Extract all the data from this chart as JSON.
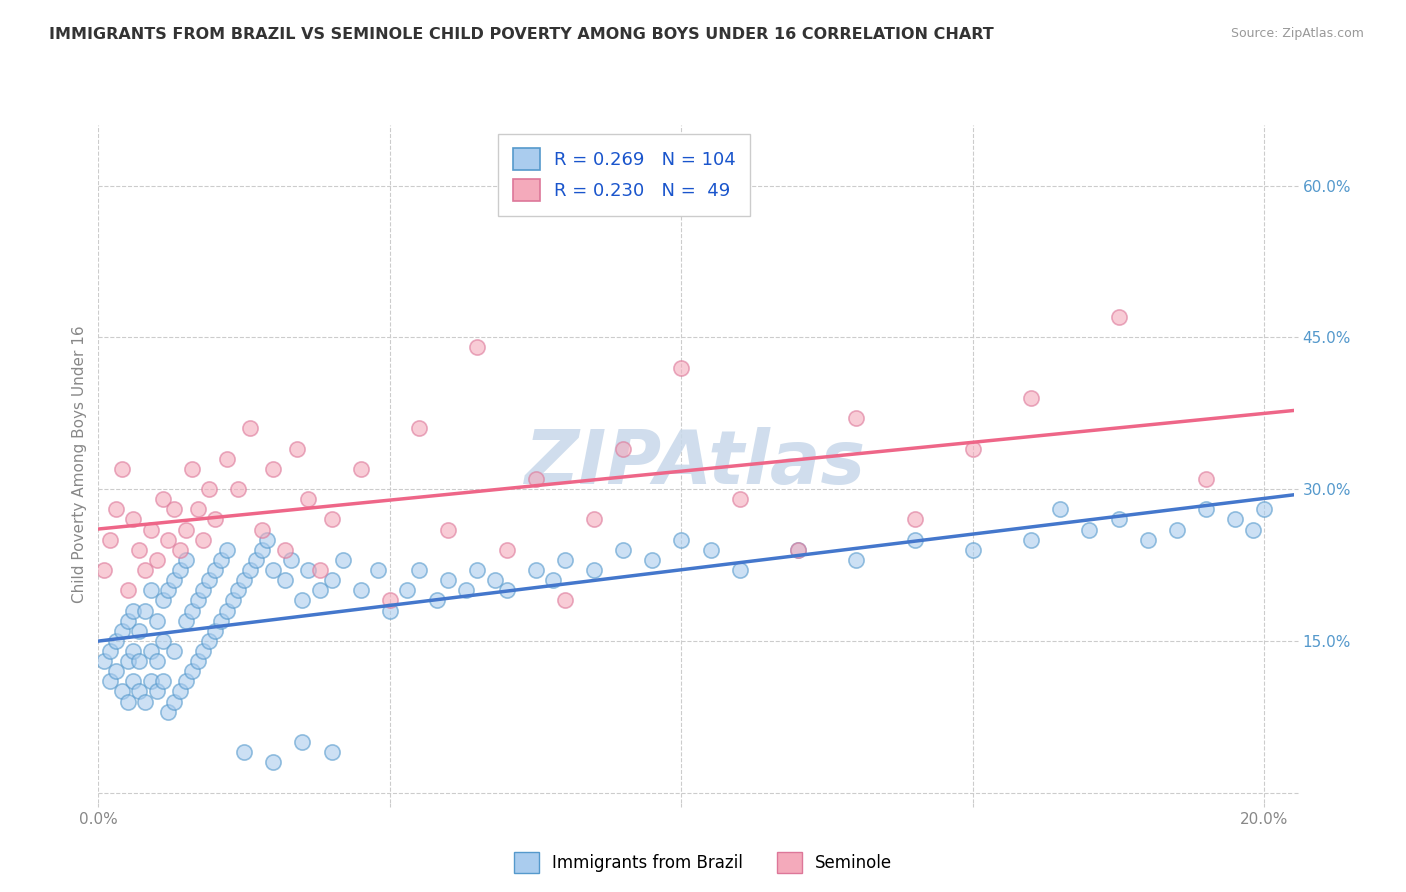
{
  "title": "IMMIGRANTS FROM BRAZIL VS SEMINOLE CHILD POVERTY AMONG BOYS UNDER 16 CORRELATION CHART",
  "source": "Source: ZipAtlas.com",
  "ylabel": "Child Poverty Among Boys Under 16",
  "xlim": [
    0.0,
    0.205
  ],
  "ylim": [
    -0.01,
    0.66
  ],
  "xticks": [
    0.0,
    0.05,
    0.1,
    0.15,
    0.2
  ],
  "yticks": [
    0.0,
    0.15,
    0.3,
    0.45,
    0.6
  ],
  "brazil_R": 0.269,
  "brazil_N": 104,
  "seminole_R": 0.23,
  "seminole_N": 49,
  "brazil_dot_color": "#aaccee",
  "brazil_edge_color": "#5599cc",
  "seminole_dot_color": "#f4aabb",
  "seminole_edge_color": "#dd7799",
  "brazil_line_color": "#4477cc",
  "seminole_line_color": "#ee6688",
  "legend_text_color": "#1a55cc",
  "watermark_color": "#c8d8ea",
  "title_color": "#333333",
  "source_color": "#999999",
  "axis_tick_color": "#5599cc",
  "grid_color": "#cccccc",
  "background_color": "#ffffff",
  "brazil_x": [
    0.001,
    0.002,
    0.002,
    0.003,
    0.003,
    0.004,
    0.004,
    0.005,
    0.005,
    0.005,
    0.006,
    0.006,
    0.006,
    0.007,
    0.007,
    0.007,
    0.008,
    0.008,
    0.009,
    0.009,
    0.009,
    0.01,
    0.01,
    0.01,
    0.011,
    0.011,
    0.011,
    0.012,
    0.012,
    0.013,
    0.013,
    0.013,
    0.014,
    0.014,
    0.015,
    0.015,
    0.015,
    0.016,
    0.016,
    0.017,
    0.017,
    0.018,
    0.018,
    0.019,
    0.019,
    0.02,
    0.02,
    0.021,
    0.021,
    0.022,
    0.022,
    0.023,
    0.024,
    0.025,
    0.026,
    0.027,
    0.028,
    0.029,
    0.03,
    0.032,
    0.033,
    0.035,
    0.036,
    0.038,
    0.04,
    0.042,
    0.045,
    0.048,
    0.05,
    0.053,
    0.055,
    0.058,
    0.06,
    0.063,
    0.065,
    0.068,
    0.07,
    0.075,
    0.078,
    0.08,
    0.085,
    0.09,
    0.095,
    0.1,
    0.105,
    0.11,
    0.12,
    0.13,
    0.14,
    0.15,
    0.16,
    0.165,
    0.17,
    0.175,
    0.18,
    0.185,
    0.19,
    0.195,
    0.198,
    0.2,
    0.025,
    0.03,
    0.035,
    0.04
  ],
  "brazil_y": [
    0.13,
    0.14,
    0.11,
    0.12,
    0.15,
    0.1,
    0.16,
    0.09,
    0.13,
    0.17,
    0.11,
    0.14,
    0.18,
    0.1,
    0.13,
    0.16,
    0.09,
    0.18,
    0.11,
    0.14,
    0.2,
    0.1,
    0.13,
    0.17,
    0.11,
    0.15,
    0.19,
    0.08,
    0.2,
    0.09,
    0.14,
    0.21,
    0.1,
    0.22,
    0.11,
    0.17,
    0.23,
    0.12,
    0.18,
    0.13,
    0.19,
    0.14,
    0.2,
    0.15,
    0.21,
    0.16,
    0.22,
    0.17,
    0.23,
    0.18,
    0.24,
    0.19,
    0.2,
    0.21,
    0.22,
    0.23,
    0.24,
    0.25,
    0.22,
    0.21,
    0.23,
    0.19,
    0.22,
    0.2,
    0.21,
    0.23,
    0.2,
    0.22,
    0.18,
    0.2,
    0.22,
    0.19,
    0.21,
    0.2,
    0.22,
    0.21,
    0.2,
    0.22,
    0.21,
    0.23,
    0.22,
    0.24,
    0.23,
    0.25,
    0.24,
    0.22,
    0.24,
    0.23,
    0.25,
    0.24,
    0.25,
    0.28,
    0.26,
    0.27,
    0.25,
    0.26,
    0.28,
    0.27,
    0.26,
    0.28,
    0.04,
    0.03,
    0.05,
    0.04
  ],
  "seminole_x": [
    0.001,
    0.002,
    0.003,
    0.004,
    0.005,
    0.006,
    0.007,
    0.008,
    0.009,
    0.01,
    0.011,
    0.012,
    0.013,
    0.014,
    0.015,
    0.016,
    0.017,
    0.018,
    0.019,
    0.02,
    0.022,
    0.024,
    0.026,
    0.028,
    0.03,
    0.032,
    0.034,
    0.036,
    0.038,
    0.04,
    0.045,
    0.05,
    0.055,
    0.06,
    0.065,
    0.07,
    0.075,
    0.08,
    0.085,
    0.09,
    0.1,
    0.11,
    0.12,
    0.13,
    0.14,
    0.15,
    0.16,
    0.175,
    0.19
  ],
  "seminole_y": [
    0.22,
    0.25,
    0.28,
    0.32,
    0.2,
    0.27,
    0.24,
    0.22,
    0.26,
    0.23,
    0.29,
    0.25,
    0.28,
    0.24,
    0.26,
    0.32,
    0.28,
    0.25,
    0.3,
    0.27,
    0.33,
    0.3,
    0.36,
    0.26,
    0.32,
    0.24,
    0.34,
    0.29,
    0.22,
    0.27,
    0.32,
    0.19,
    0.36,
    0.26,
    0.44,
    0.24,
    0.31,
    0.19,
    0.27,
    0.34,
    0.42,
    0.29,
    0.24,
    0.37,
    0.27,
    0.34,
    0.39,
    0.47,
    0.31
  ]
}
